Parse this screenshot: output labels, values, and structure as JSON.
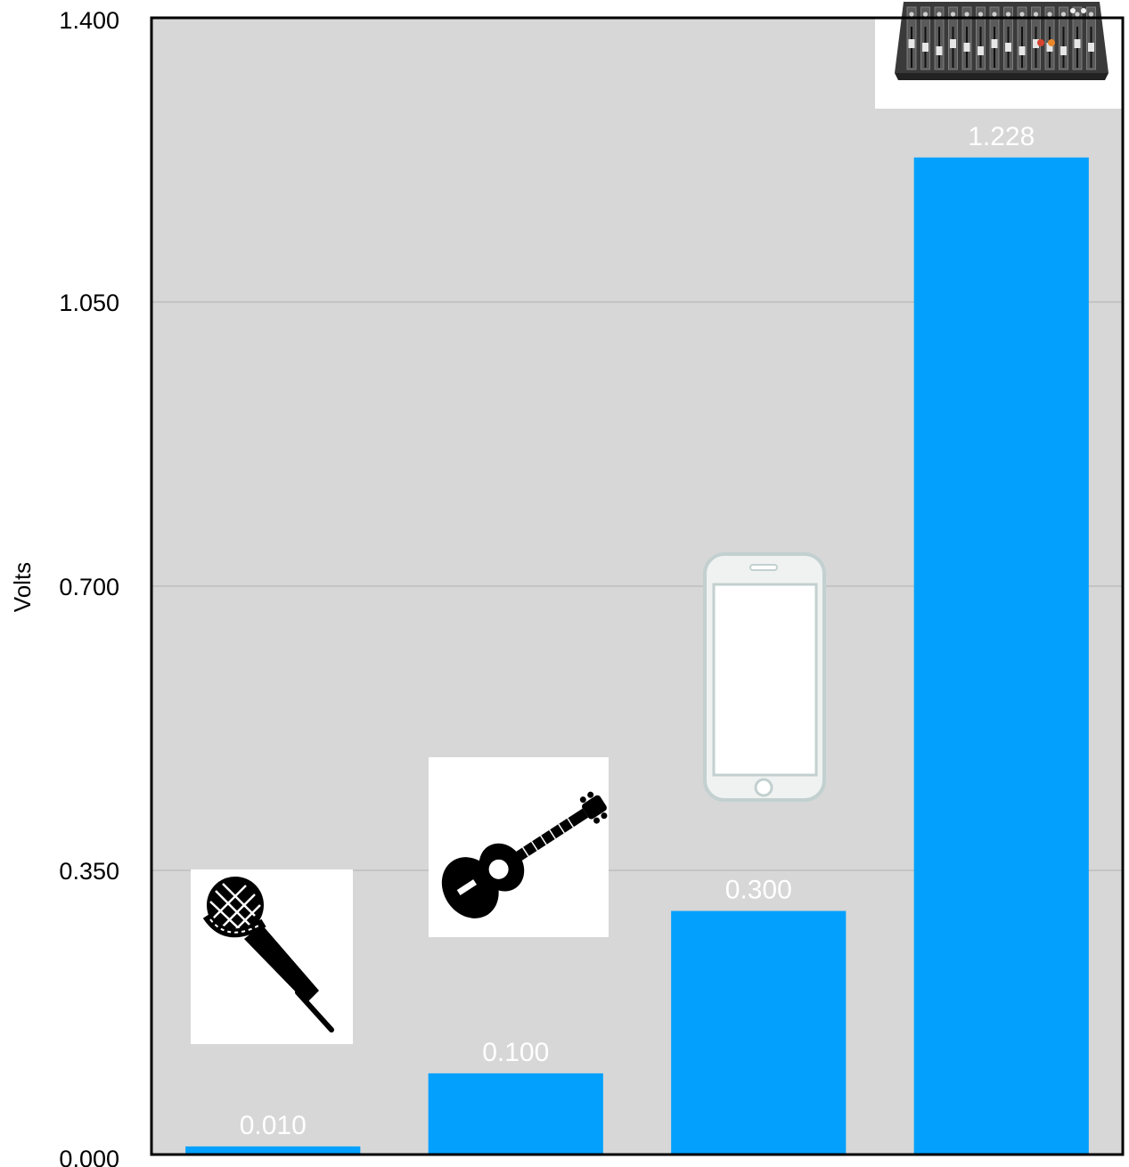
{
  "chart_data": {
    "type": "bar",
    "categories": [
      "",
      "",
      "",
      ""
    ],
    "values": [
      0.01,
      0.1,
      0.3,
      1.228
    ],
    "value_labels": [
      "0.010",
      "0.100",
      "0.300",
      "1.228"
    ],
    "category_icons": [
      "microphone-icon",
      "acoustic-guitar-icon",
      "smartphone-icon",
      "audio-mixer-icon"
    ],
    "ylabel": "Volts",
    "ylim": [
      0,
      1.4
    ],
    "yticks": [
      0.0,
      0.35,
      0.7,
      1.05,
      1.4
    ],
    "ytick_labels": [
      "0.000",
      "0.350",
      "0.700",
      "1.050",
      "1.400"
    ],
    "grid": true,
    "colors": {
      "bar": "#03a1fd",
      "plot_background": "#d7d7d7",
      "gridline": "#b9b9b9",
      "data_label": "#ffffff"
    }
  }
}
